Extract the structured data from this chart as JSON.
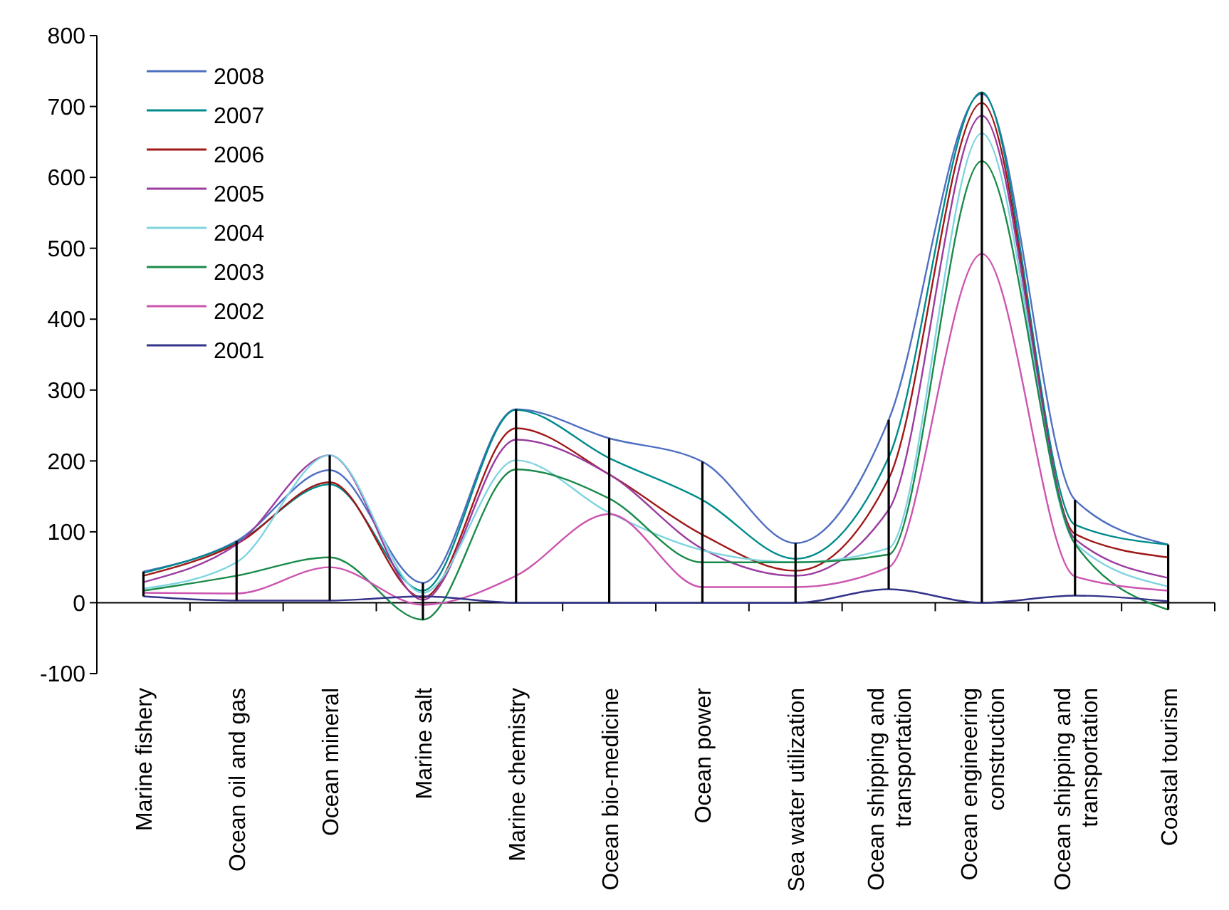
{
  "chart_data": {
    "type": "line",
    "categories": [
      "Marine fishery",
      "Ocean oil and gas",
      "Ocean mineral",
      "Marine salt",
      "Marine chemistry",
      "Ocean bio-medicine",
      "Ocean power",
      "Sea water utilization",
      "Ocean shipping and transportation",
      "Ocean engineering construction",
      "Ocean shipping and transportation",
      "Coastal tourism"
    ],
    "series": [
      {
        "name": "2008",
        "color": "#4f6fc0",
        "values": [
          44,
          87,
          187,
          28,
          273,
          232,
          199,
          84,
          258,
          718,
          145,
          82
        ]
      },
      {
        "name": "2007",
        "color": "#008b8b",
        "values": [
          42,
          85,
          167,
          17,
          272,
          204,
          145,
          62,
          205,
          720,
          110,
          82
        ]
      },
      {
        "name": "2006",
        "color": "#a01818",
        "values": [
          38,
          83,
          170,
          7,
          246,
          181,
          96,
          45,
          175,
          705,
          97,
          64
        ]
      },
      {
        "name": "2005",
        "color": "#9b3ca0",
        "values": [
          29,
          82,
          208,
          4,
          230,
          181,
          76,
          38,
          131,
          687,
          90,
          35
        ]
      },
      {
        "name": "2004",
        "color": "#7fd4e0",
        "values": [
          20,
          57,
          208,
          14,
          201,
          127,
          74,
          57,
          77,
          662,
          84,
          23
        ]
      },
      {
        "name": "2003",
        "color": "#1a8a4a",
        "values": [
          17,
          38,
          64,
          -24,
          188,
          147,
          57,
          57,
          68,
          623,
          83,
          -10
        ]
      },
      {
        "name": "2002",
        "color": "#cc55b0",
        "values": [
          14,
          13,
          50,
          -3,
          38,
          125,
          22,
          22,
          50,
          492,
          37,
          17
        ]
      },
      {
        "name": "2001",
        "color": "#33338a",
        "values": [
          9,
          3,
          3,
          9,
          0,
          0,
          0,
          0,
          19,
          0,
          10,
          2
        ]
      },
      {
        "type": "bar",
        "color": "#000000",
        "base": [
          9,
          3,
          3,
          -24,
          0,
          0,
          0,
          0,
          19,
          0,
          10,
          -10
        ],
        "values": [
          35,
          84,
          205,
          52,
          273,
          232,
          199,
          84,
          239,
          720,
          135,
          92
        ]
      }
    ],
    "ylim": [
      -100,
      800
    ],
    "yticks": [
      -100,
      0,
      100,
      200,
      300,
      400,
      500,
      600,
      700,
      800
    ],
    "legend": "top left"
  }
}
